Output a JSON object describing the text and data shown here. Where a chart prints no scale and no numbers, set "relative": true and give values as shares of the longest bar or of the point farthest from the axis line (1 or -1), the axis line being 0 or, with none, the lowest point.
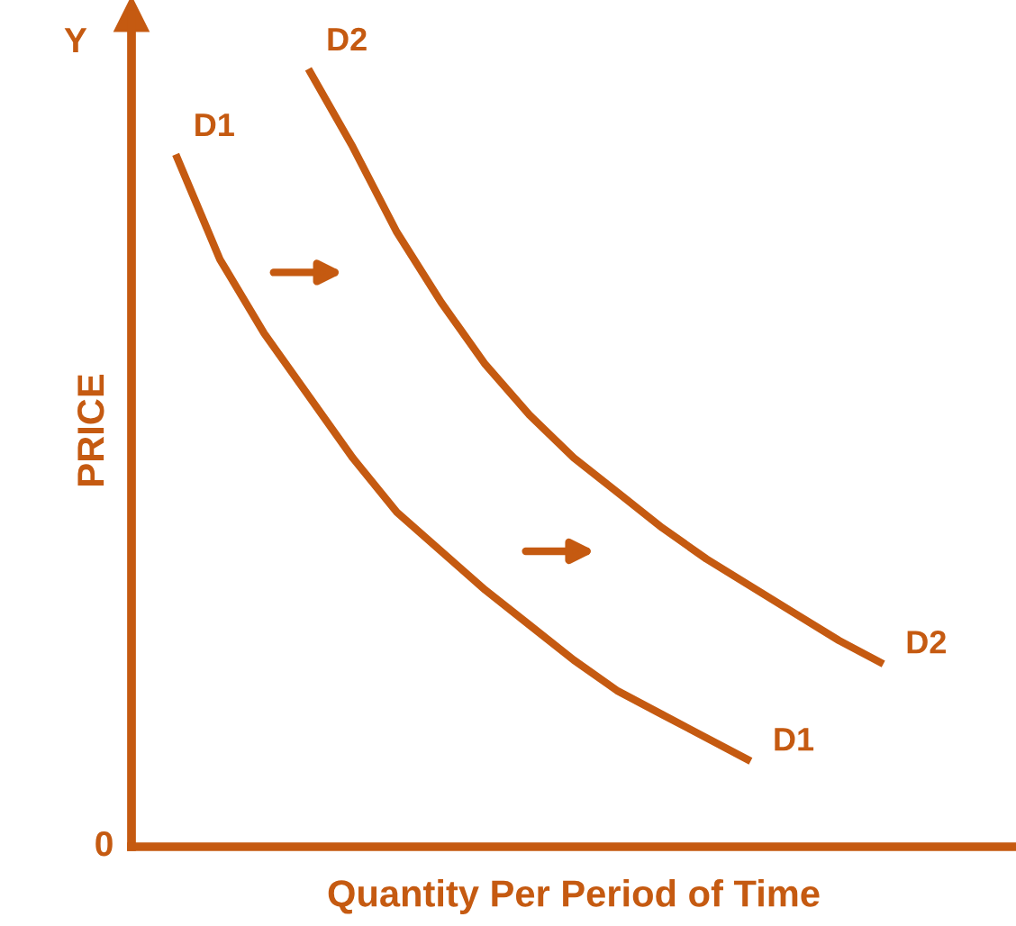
{
  "chart_data": {
    "type": "line",
    "relative": true,
    "xlabel": "Quantity Per Period of Time",
    "ylabel": "PRICE",
    "annotations": [
      "Y",
      "0"
    ],
    "marker": "none",
    "line_style": "solid",
    "categories": [
      null,
      null,
      null,
      null,
      null,
      null,
      null,
      null,
      null,
      null,
      null,
      null,
      null,
      null,
      null,
      null,
      null,
      null
    ],
    "series": [
      {
        "name": "D1",
        "color": "#c55a11",
        "values": [
          0.89,
          0.755,
          0.66,
          0.58,
          0.5,
          0.43,
          0.38,
          0.33,
          0.285,
          0.24,
          0.2,
          0.17,
          0.14,
          0.11,
          null,
          null,
          null,
          null
        ]
      },
      {
        "name": "D2",
        "color": "#c55a11",
        "values": [
          null,
          null,
          null,
          1.0,
          0.9,
          0.79,
          0.7,
          0.62,
          0.555,
          0.5,
          0.455,
          0.41,
          0.37,
          0.335,
          0.3,
          0.265,
          0.235,
          null
        ]
      }
    ]
  }
}
